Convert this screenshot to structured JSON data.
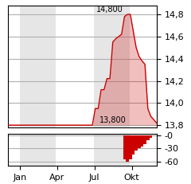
{
  "chart_data": [
    {
      "type": "area",
      "x": [
        0,
        1,
        2,
        3,
        4,
        5,
        6,
        7,
        8,
        9,
        10,
        11,
        12,
        13,
        14,
        15,
        16,
        17,
        18,
        19,
        20,
        21,
        22,
        23,
        24,
        25,
        26,
        27,
        28,
        29,
        30,
        31,
        32,
        33,
        34,
        35,
        36,
        37,
        38,
        39,
        40,
        41,
        42,
        43,
        44,
        45,
        46,
        47,
        48,
        49,
        50,
        51
      ],
      "values": [
        13.8,
        13.8,
        13.8,
        13.8,
        13.8,
        13.8,
        13.8,
        13.8,
        13.8,
        13.8,
        13.8,
        13.8,
        13.8,
        13.8,
        13.8,
        13.8,
        13.8,
        13.8,
        13.8,
        13.8,
        13.8,
        13.8,
        13.8,
        13.8,
        13.8,
        13.8,
        13.8,
        13.8,
        13.8,
        13.8,
        13.95,
        13.95,
        14.12,
        14.12,
        14.22,
        14.22,
        14.55,
        14.58,
        14.6,
        14.62,
        14.78,
        14.8,
        14.8,
        14.65,
        14.5,
        14.42,
        14.38,
        14.35,
        13.95,
        13.88,
        13.85,
        13.82
      ],
      "fill_base": 13.8,
      "color": "#cc0000",
      "xlim": [
        0,
        51
      ],
      "ylim": [
        13.78,
        14.88
      ],
      "yticks": [
        {
          "value": 13.8,
          "label": "13,8"
        },
        {
          "value": 14.0,
          "label": "14,0"
        },
        {
          "value": 14.2,
          "label": "14,2"
        },
        {
          "value": 14.4,
          "label": "14,4"
        },
        {
          "value": 14.6,
          "label": "14,6"
        },
        {
          "value": 14.8,
          "label": "14,8"
        }
      ],
      "shaded_x": [
        [
          4.233,
          16.32
        ],
        [
          29.58,
          41.82
        ]
      ],
      "grid": true,
      "tick_labels": "y",
      "annotations": [
        {
          "text": "14,800",
          "x": 41,
          "y": 14.8
        },
        {
          "text": "13,800",
          "x": 42,
          "y": 13.8
        }
      ]
    },
    {
      "type": "bar",
      "x": [
        0,
        1,
        2,
        3,
        4,
        5,
        6,
        7,
        8,
        9,
        10,
        11,
        12,
        13,
        14,
        15,
        16,
        17,
        18,
        19,
        20,
        21,
        22,
        23,
        24,
        25,
        26,
        27,
        28,
        29,
        30,
        31,
        32,
        33,
        34,
        35,
        36,
        37,
        38,
        39,
        40,
        41,
        42,
        43,
        44,
        45,
        46,
        47,
        48,
        49,
        50,
        51
      ],
      "values": [
        0,
        0,
        0,
        0,
        0,
        0,
        0,
        0,
        0,
        0,
        0,
        0,
        0,
        0,
        0,
        0,
        0,
        0,
        0,
        0,
        0,
        0,
        0,
        0,
        0,
        0,
        0,
        0,
        0,
        0,
        0,
        0,
        0,
        0,
        0,
        0,
        0,
        0,
        0,
        0,
        -55,
        -60,
        -55,
        -45,
        -35,
        -30,
        -25,
        -20,
        -10,
        -5,
        0,
        0
      ],
      "color": "#cc0000",
      "xlim": [
        0,
        51
      ],
      "xticks": [
        {
          "value": 4.233,
          "label": "Jan"
        },
        {
          "value": 16.983,
          "label": "Apr"
        },
        {
          "value": 29.733,
          "label": "Jul"
        },
        {
          "value": 42.483,
          "label": "Okt"
        }
      ],
      "ylim": [
        -70,
        5
      ],
      "yticks": [
        -60,
        -30,
        {
          "value": 0,
          "label": "-0"
        }
      ],
      "shaded_x": [
        [
          4.233,
          16.32
        ],
        [
          29.58,
          41.82
        ]
      ],
      "grid": true
    }
  ]
}
